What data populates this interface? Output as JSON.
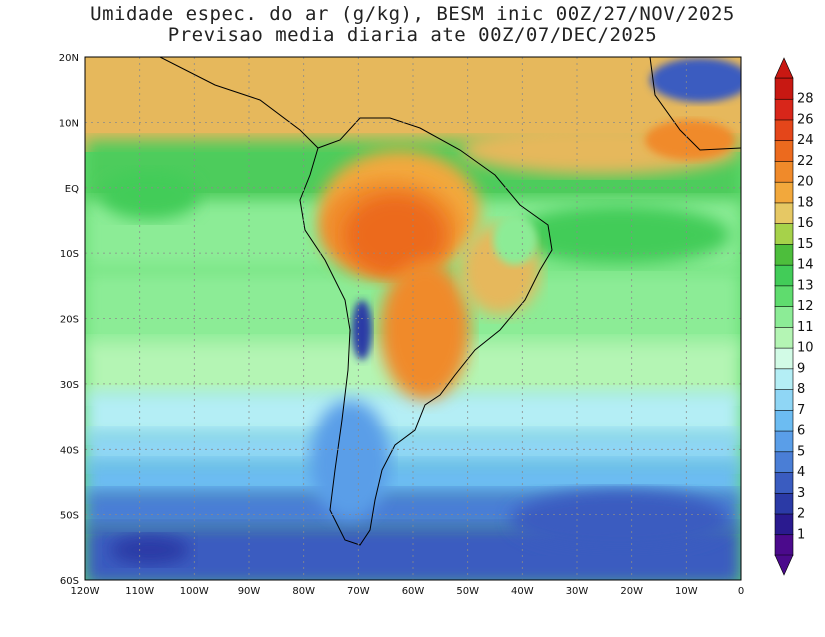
{
  "title": {
    "line1": "Umidade espec. do ar (g/kg), BESM inic 00Z/27/NOV/2025",
    "line2": "Previsao media diaria ate 00Z/07/DEC/2025"
  },
  "map": {
    "lon_ticks": [
      "120W",
      "110W",
      "100W",
      "90W",
      "80W",
      "70W",
      "60W",
      "50W",
      "40W",
      "30W",
      "20W",
      "10W",
      "0"
    ],
    "lat_ticks": [
      "20N",
      "10N",
      "EQ",
      "10S",
      "20S",
      "30S",
      "40S",
      "50S",
      "60S"
    ],
    "grid": true,
    "extent": {
      "lon": [
        -120,
        0
      ],
      "lat": [
        -60,
        20
      ]
    }
  },
  "colorbar": {
    "labels": [
      "1",
      "2",
      "3",
      "4",
      "5",
      "6",
      "7",
      "8",
      "9",
      "10",
      "11",
      "12",
      "13",
      "14",
      "15",
      "16",
      "18",
      "20",
      "22",
      "24",
      "26",
      "28"
    ],
    "colors": [
      "#4b0a8c",
      "#2a1a8f",
      "#2b3aa6",
      "#3a5cc0",
      "#4a7ed6",
      "#5a9ee8",
      "#6cbcf2",
      "#8fd6f5",
      "#b4eef5",
      "#d2fbe6",
      "#b4f5b4",
      "#8cec96",
      "#5fdc6e",
      "#42cc58",
      "#4dbe3c",
      "#a6d24a",
      "#e6c864",
      "#f2a83c",
      "#f08a2a",
      "#ec6a1e",
      "#e4461a",
      "#d8261a",
      "#c81812"
    ],
    "extend": "both"
  }
}
